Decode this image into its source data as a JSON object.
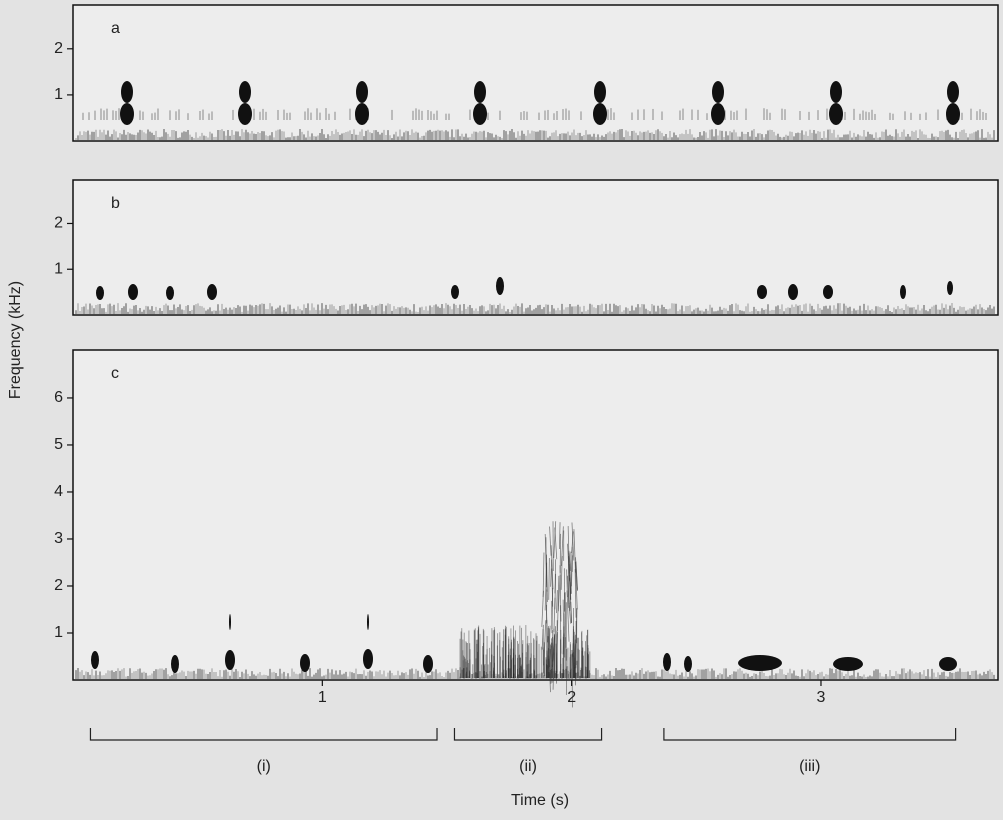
{
  "figure": {
    "ylabel": "Frequency (kHz)",
    "xlabel": "Time (s)"
  },
  "chart_data": [
    {
      "type": "spectrogram",
      "panel_label": "a",
      "xlim": [
        0,
        3.71
      ],
      "ylim": [
        0,
        2.95
      ],
      "yticks": [
        1,
        2
      ]
    },
    {
      "type": "spectrogram",
      "panel_label": "b",
      "xlim": [
        0,
        3.71
      ],
      "ylim": [
        0,
        2.95
      ],
      "yticks": [
        1,
        2
      ]
    },
    {
      "type": "spectrogram",
      "panel_label": "c",
      "xlim": [
        0,
        3.71
      ],
      "ylim": [
        0,
        7.02
      ],
      "yticks": [
        1,
        2,
        3,
        4,
        5,
        6
      ],
      "xticks": [
        1,
        2,
        3
      ],
      "segments": [
        {
          "label": "(i)",
          "start": 0.07,
          "end": 1.46
        },
        {
          "label": "(ii)",
          "start": 1.53,
          "end": 2.12
        },
        {
          "label": "(iii)",
          "start": 2.37,
          "end": 3.54
        }
      ]
    }
  ]
}
